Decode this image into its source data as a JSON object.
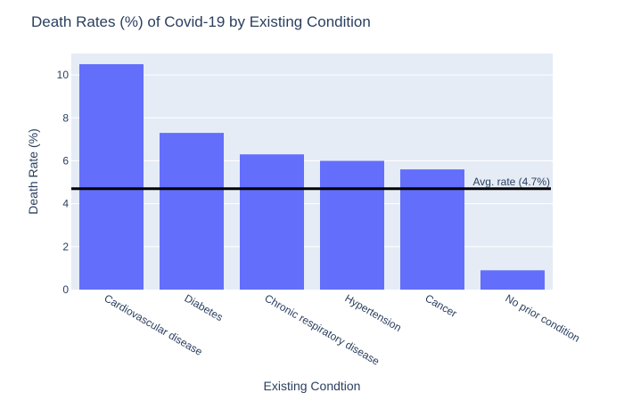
{
  "chart_data": {
    "type": "bar",
    "title": "Death Rates (%) of Covid-19 by Existing Condition",
    "xlabel": "Existing Condtion",
    "ylabel": "Death Rate (%)",
    "categories": [
      "Cardiovascular disease",
      "Diabetes",
      "Chronic respiratory disease",
      "Hypertension",
      "Cancer",
      "No prior condition"
    ],
    "values": [
      10.5,
      7.3,
      6.3,
      6.0,
      5.6,
      0.9
    ],
    "ylim": [
      0,
      11.0
    ],
    "yticks": [
      0,
      2,
      4,
      6,
      8,
      10
    ],
    "grid": true,
    "reference_line": {
      "value": 4.7,
      "label": "Avg. rate (4.7%)",
      "color": "#000000"
    },
    "colors": {
      "bar": "#636efa",
      "plot_background": "#e5ecf6",
      "gridline": "#ffffff",
      "text": "#2a3f5f"
    }
  }
}
